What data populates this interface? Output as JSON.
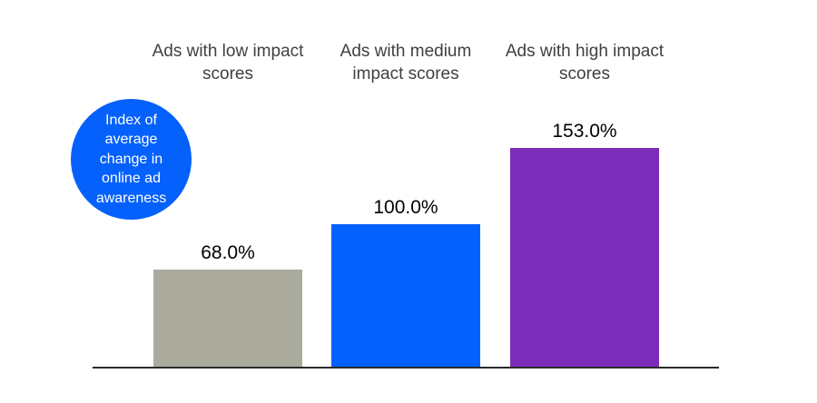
{
  "chart_data": {
    "type": "bar",
    "title": "Index of average change in online ad awareness",
    "categories": [
      "Ads with low impact scores",
      "Ads with medium impact scores",
      "Ads with high impact scores"
    ],
    "values": [
      68.0,
      100.0,
      153.0
    ],
    "value_labels": [
      "68.0%",
      "100.0%",
      "153.0%"
    ],
    "unit": "%",
    "bar_colors": [
      "#abab9d",
      "#0561fc",
      "#7b2cb8"
    ],
    "axis_color": "#2b2b2b",
    "background_color": "#ffffff",
    "label_color": "#000000",
    "category_color": "#404040",
    "ylim": [
      0,
      160
    ],
    "grid": false,
    "legend": "none"
  },
  "annotation_bubble": {
    "lines": [
      "Index of",
      "average",
      "change in",
      "online ad",
      "awareness"
    ],
    "fill_color": "#0561fc",
    "text_color": "#ffffff"
  }
}
